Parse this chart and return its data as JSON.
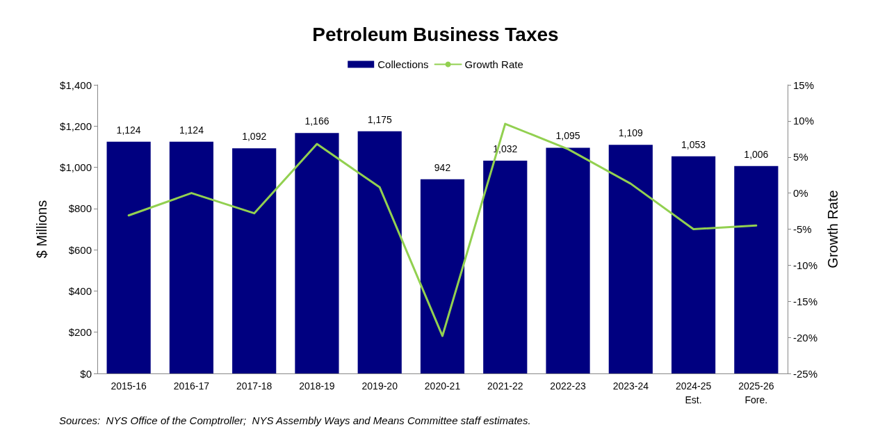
{
  "chart_data": {
    "type": "bar",
    "title": "Petroleum Business Taxes",
    "ylabel": "$ Millions",
    "y2label": "Growth Rate",
    "categories": [
      "2015-16",
      "2016-17",
      "2017-18",
      "2018-19",
      "2019-20",
      "2020-21",
      "2021-22",
      "2022-23",
      "2023-24",
      "2024-25\nEst.",
      "2025-26\nFore."
    ],
    "series": [
      {
        "name": "Collections",
        "color": "#000080",
        "values": [
          1124,
          1124,
          1092,
          1166,
          1175,
          942,
          1032,
          1095,
          1109,
          1053,
          1006
        ],
        "value_labels": [
          "1,124",
          "1,124",
          "1,092",
          "1,166",
          "1,175",
          "942",
          "1,032",
          "1,095",
          "1,109",
          "1,053",
          "1,006"
        ]
      },
      {
        "name": "Growth Rate",
        "type": "line",
        "axis": "y2",
        "color": "#92d050",
        "values": [
          -3.1,
          0,
          -2.8,
          6.8,
          0.8,
          -19.8,
          9.6,
          6.1,
          1.3,
          -5.0,
          -4.5
        ]
      }
    ],
    "ylim": [
      0,
      1400
    ],
    "yticks": [
      {
        "value": 0,
        "label": "$0"
      },
      {
        "value": 200,
        "label": "$200"
      },
      {
        "value": 400,
        "label": "$400"
      },
      {
        "value": 600,
        "label": "$600"
      },
      {
        "value": 800,
        "label": "$800"
      },
      {
        "value": 1000,
        "label": "$1,000"
      },
      {
        "value": 1200,
        "label": "$1,200"
      },
      {
        "value": 1400,
        "label": "$1,400"
      }
    ],
    "y2lim": [
      -25,
      15
    ],
    "y2ticks": [
      {
        "value": -25,
        "label": "-25%"
      },
      {
        "value": -20,
        "label": "-20%"
      },
      {
        "value": -15,
        "label": "-15%"
      },
      {
        "value": -10,
        "label": "-10%"
      },
      {
        "value": -5,
        "label": "-5%"
      },
      {
        "value": 0,
        "label": "0%"
      },
      {
        "value": 5,
        "label": "5%"
      },
      {
        "value": 10,
        "label": "10%"
      },
      {
        "value": 15,
        "label": "15%"
      }
    ],
    "grid": false,
    "legend": "top",
    "marker": "none",
    "line_style": "solid",
    "annotations": [
      "Sources:  NYS Office of the Comptroller;  NYS Assembly Ways and Means Committee staff estimates."
    ]
  }
}
